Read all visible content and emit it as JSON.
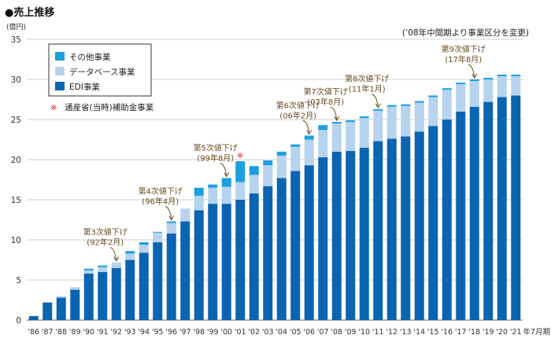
{
  "chart_data": {
    "type": "bar",
    "stacked": true,
    "title": "●売上推移",
    "unit_label": "(億円)",
    "note": "(’08年中間期より事業区分を変更)",
    "x_suffix": "年7月期",
    "ylim": [
      0,
      35
    ],
    "yticks": [
      0,
      5,
      10,
      15,
      20,
      25,
      30,
      35
    ],
    "categories": [
      "'86",
      "'87",
      "'88",
      "'89",
      "'90",
      "'91",
      "'92",
      "'93",
      "'94",
      "'95",
      "'96",
      "'97",
      "'98",
      "'99",
      "'00",
      "'01",
      "'02",
      "'03",
      "'04",
      "'05",
      "'06",
      "'07",
      "'08",
      "'09",
      "'10",
      "'11",
      "'12",
      "'13",
      "'14",
      "'15",
      "'16",
      "'17",
      "'18",
      "'19",
      "'20",
      "'21"
    ],
    "series": [
      {
        "name": "EDI事業",
        "color": "#0a64b0",
        "values": [
          0.5,
          2.2,
          2.8,
          3.8,
          5.8,
          6.0,
          6.5,
          7.5,
          8.4,
          9.7,
          10.8,
          12.3,
          13.7,
          14.5,
          14.5,
          15.0,
          15.8,
          16.7,
          17.7,
          18.6,
          19.3,
          20.3,
          21.0,
          21.1,
          21.5,
          22.3,
          22.6,
          22.9,
          23.5,
          24.2,
          25.0,
          26.0,
          26.6,
          27.2,
          27.8,
          28.0
        ]
      },
      {
        "name": "データベース事業",
        "color": "#b7d3ee",
        "values": [
          0,
          0,
          0.2,
          0.3,
          0.4,
          0.6,
          0.7,
          0.8,
          1.0,
          1.2,
          1.3,
          1.6,
          1.8,
          2.0,
          2.1,
          2.2,
          2.3,
          2.6,
          2.8,
          3.0,
          3.2,
          3.4,
          3.5,
          3.6,
          3.7,
          3.8,
          4.0,
          3.8,
          3.6,
          3.6,
          3.7,
          3.4,
          3.2,
          2.8,
          2.6,
          2.4
        ]
      },
      {
        "name": "その他事業",
        "color": "#1aa0de",
        "values": [
          0,
          0,
          0,
          0,
          0.2,
          0.2,
          0,
          0.3,
          0.3,
          0.1,
          0.2,
          0,
          1.0,
          0.4,
          1.1,
          0,
          1.1,
          0.6,
          0.5,
          0.3,
          0.5,
          0.6,
          0.2,
          0.2,
          0.2,
          0.2,
          0.2,
          0.2,
          0.2,
          0.2,
          0.2,
          0.2,
          0.2,
          0.2,
          0.2,
          0.2
        ]
      },
      {
        "name": "通産省(当時)補助金事業",
        "color": "#1aa0de",
        "values": [
          0,
          0,
          0,
          0,
          0,
          0,
          0,
          0,
          0,
          0,
          0,
          0,
          0,
          0,
          0,
          2.6,
          0,
          0,
          0,
          0,
          0,
          0,
          0,
          0,
          0,
          0,
          0,
          0,
          0,
          0,
          0,
          0,
          0,
          0,
          0,
          0
        ]
      }
    ],
    "subsidy_marker": {
      "symbol": "※",
      "category": "'01",
      "color": "#e02020"
    },
    "legend": [
      {
        "label": "その他事業",
        "color": "#1aa0de",
        "kind": "box"
      },
      {
        "label": "データベース事業",
        "color": "#b7d3ee",
        "kind": "box"
      },
      {
        "label": "EDI事業",
        "color": "#0a64b0",
        "kind": "box"
      },
      {
        "label": "通産省(当時)補助金事業",
        "color": "#e02020",
        "kind": "mark",
        "symbol": "※"
      }
    ],
    "annotations": [
      {
        "category": "'92",
        "line1": "第3次値下げ",
        "line2": "(92年2月)"
      },
      {
        "category": "'96",
        "line1": "第4次値下げ",
        "line2": "(96年4月)"
      },
      {
        "category": "'00",
        "line1": "第5次値下げ",
        "line2": "(99年8月)"
      },
      {
        "category": "'06",
        "line1": "第6次値下げ",
        "line2": "(06年2月)"
      },
      {
        "category": "'08",
        "line1": "第7次値下げ",
        "line2": "(07年8月)"
      },
      {
        "category": "'11",
        "line1": "第8次値下げ",
        "line2": "(11年1月)"
      },
      {
        "category": "'18",
        "line1": "第9次値下げ",
        "line2": "(17年8月)"
      }
    ]
  }
}
